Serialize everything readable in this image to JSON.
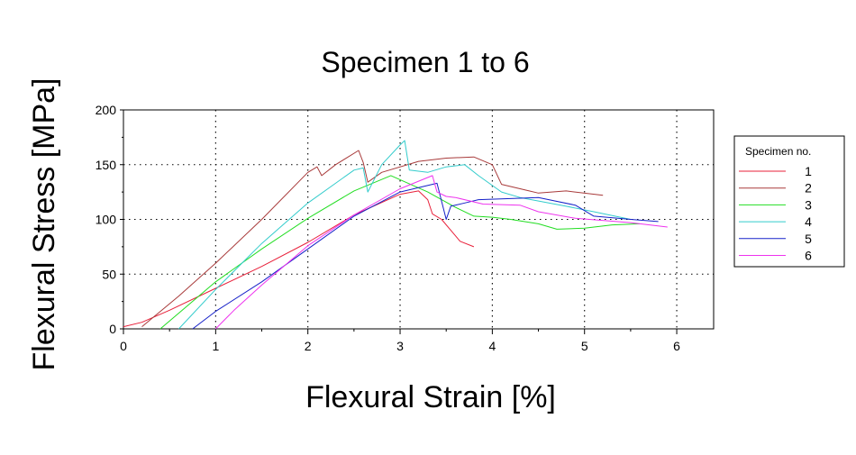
{
  "chart_data": {
    "type": "line",
    "title": "Specimen 1 to 6",
    "xlabel": "Flexural Strain [%]",
    "ylabel": "Flexural Stress [MPa]",
    "xlim": [
      0,
      6.4
    ],
    "ylim": [
      0,
      200
    ],
    "xticks": [
      "0",
      "1",
      "2",
      "3",
      "4",
      "5",
      "6"
    ],
    "yticks": [
      "0",
      "50",
      "100",
      "150",
      "200"
    ],
    "grid": true,
    "legend_title": "Specimen no.",
    "legend_position": "right",
    "series": [
      {
        "name": "1",
        "color": "#e8203a",
        "x": [
          0.0,
          0.2,
          0.5,
          1.0,
          1.5,
          2.0,
          2.5,
          3.0,
          3.2,
          3.3,
          3.35,
          3.45,
          3.55,
          3.65,
          3.8
        ],
        "y": [
          2,
          6,
          17,
          37,
          57,
          79,
          104,
          123,
          126,
          118,
          105,
          100,
          90,
          80,
          75
        ]
      },
      {
        "name": "2",
        "color": "#a83a3a",
        "x": [
          0.2,
          0.6,
          1.0,
          1.5,
          2.0,
          2.1,
          2.15,
          2.3,
          2.55,
          2.6,
          2.65,
          2.8,
          3.2,
          3.5,
          3.8,
          4.0,
          4.1,
          4.4,
          4.5,
          4.8,
          5.2
        ],
        "y": [
          2,
          30,
          60,
          100,
          143,
          148,
          140,
          150,
          163,
          152,
          134,
          143,
          153,
          156,
          157,
          150,
          132,
          126,
          124,
          126,
          122
        ]
      },
      {
        "name": "3",
        "color": "#22dd22",
        "x": [
          0.4,
          1.0,
          1.5,
          2.0,
          2.5,
          2.9,
          3.3,
          3.6,
          3.8,
          4.0,
          4.2,
          4.5,
          4.7,
          5.0,
          5.3,
          5.6
        ],
        "y": [
          0,
          43,
          73,
          101,
          126,
          140,
          125,
          111,
          103,
          102,
          100,
          96,
          91,
          92,
          95,
          96
        ]
      },
      {
        "name": "4",
        "color": "#33cccc",
        "x": [
          0.6,
          1.0,
          1.5,
          2.0,
          2.5,
          2.6,
          2.65,
          2.8,
          3.0,
          3.05,
          3.1,
          3.3,
          3.5,
          3.7,
          3.85,
          4.1,
          4.3,
          4.8,
          5.1,
          5.5
        ],
        "y": [
          0,
          36,
          78,
          115,
          145,
          147,
          125,
          150,
          168,
          172,
          145,
          143,
          148,
          150,
          140,
          125,
          120,
          112,
          107,
          100
        ]
      },
      {
        "name": "5",
        "color": "#1520c8",
        "x": [
          0.75,
          1.0,
          1.5,
          2.0,
          2.5,
          3.0,
          3.4,
          3.5,
          3.55,
          3.7,
          3.85,
          4.2,
          4.5,
          4.9,
          5.1,
          5.5,
          5.8
        ],
        "y": [
          0,
          16,
          43,
          73,
          103,
          125,
          133,
          100,
          112,
          115,
          118,
          119,
          120,
          113,
          103,
          100,
          98
        ]
      },
      {
        "name": "6",
        "color": "#ee33ee",
        "x": [
          1.0,
          1.2,
          1.5,
          2.0,
          2.5,
          3.0,
          3.35,
          3.4,
          3.5,
          3.6,
          3.9,
          4.3,
          4.5,
          4.9,
          5.5,
          5.9
        ],
        "y": [
          0,
          17,
          40,
          76,
          104,
          128,
          140,
          125,
          121,
          120,
          114,
          113,
          107,
          101,
          97,
          93
        ]
      }
    ]
  }
}
